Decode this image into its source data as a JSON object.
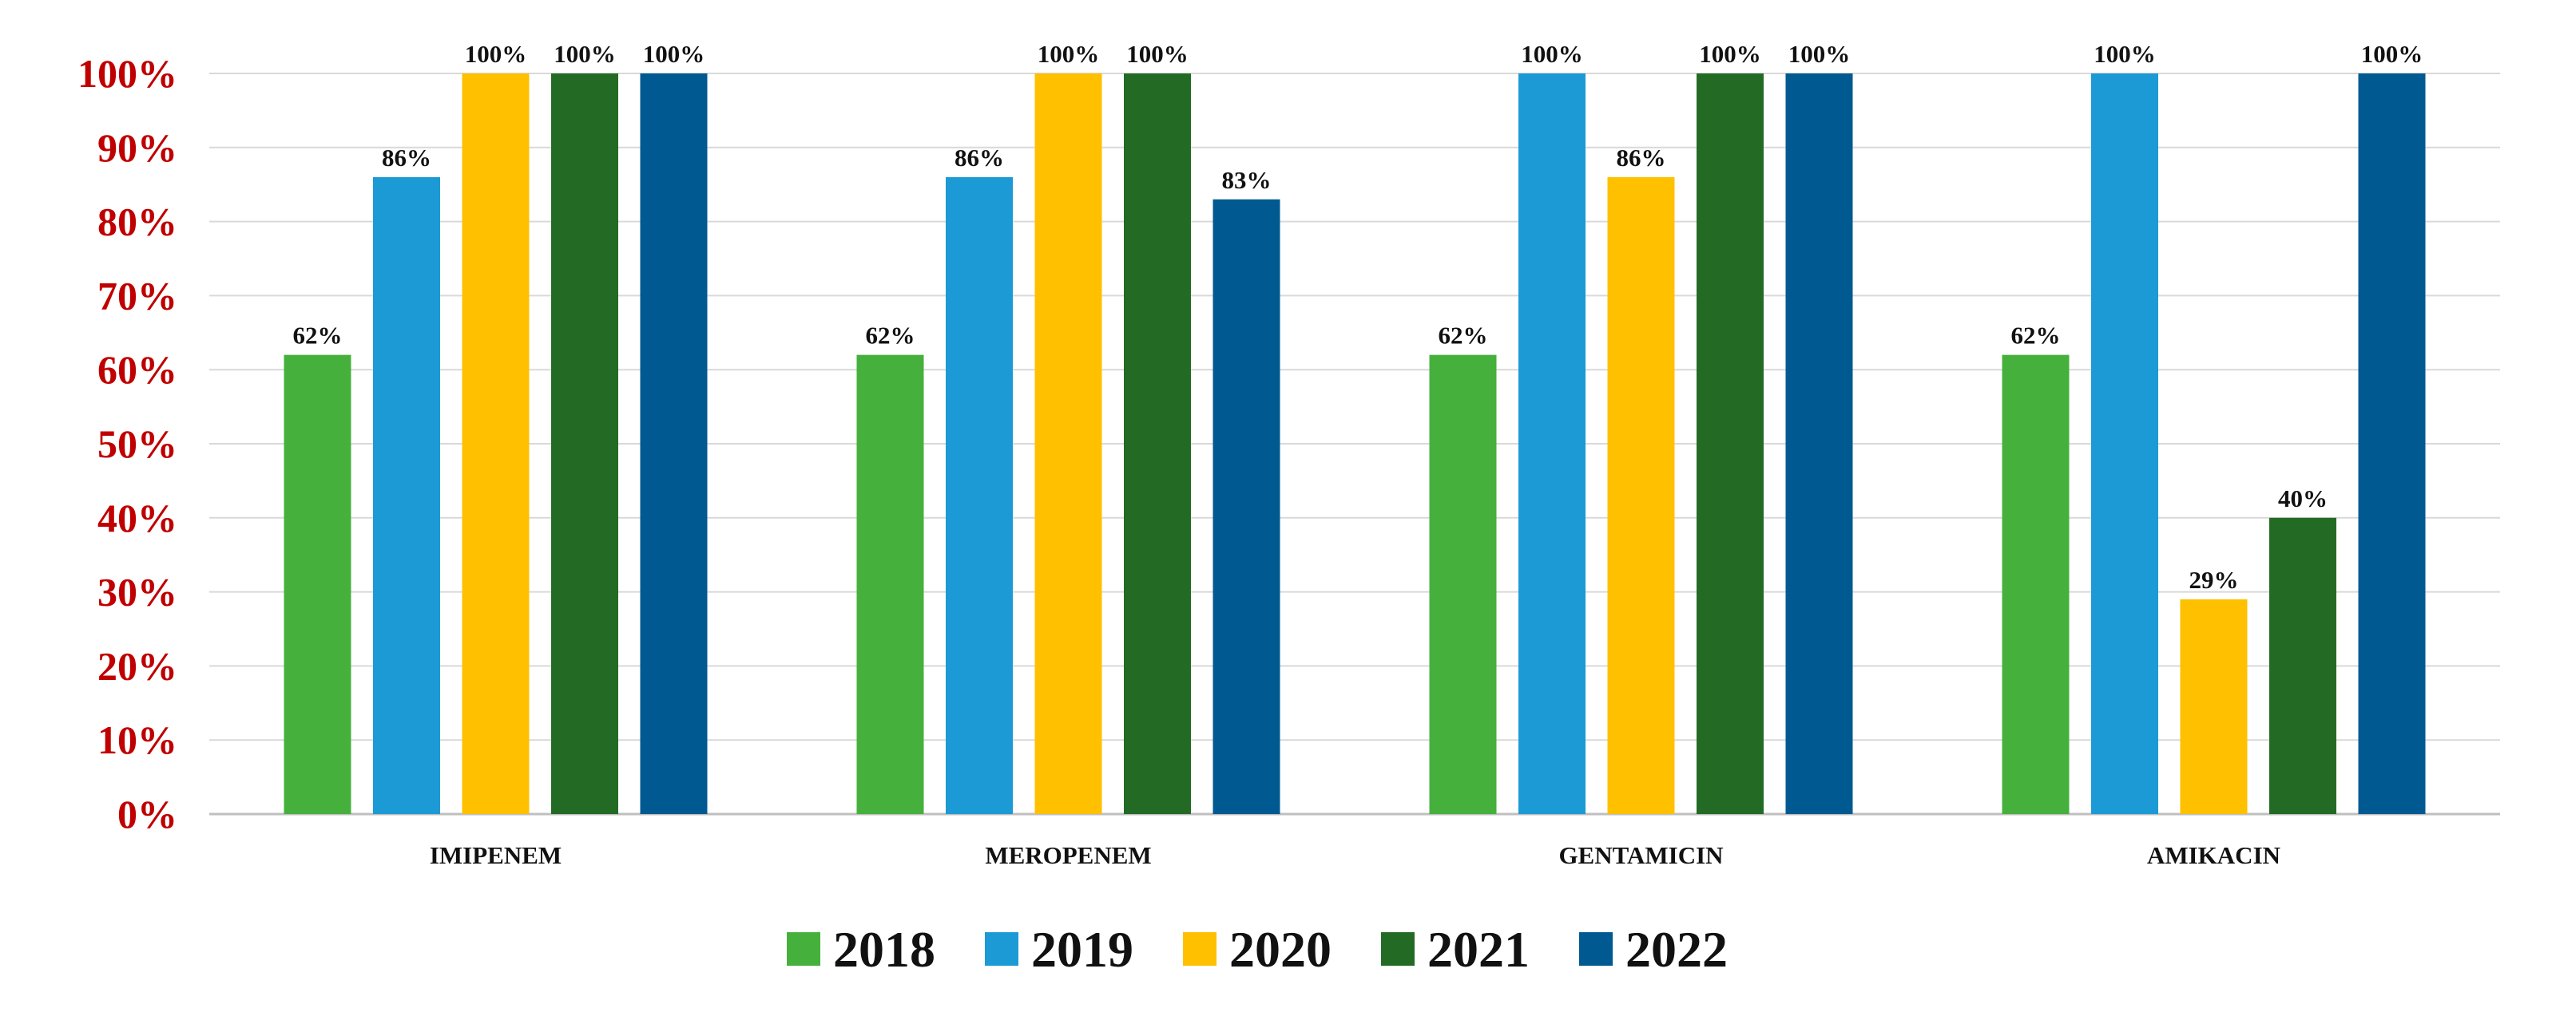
{
  "chart_data": {
    "type": "bar",
    "title": "",
    "xlabel": "",
    "ylabel": "",
    "categories": [
      "IMIPENEM",
      "MEROPENEM",
      "GENTAMICIN",
      "AMIKACIN"
    ],
    "series": [
      {
        "name": "2018",
        "color": "#46b03d",
        "values": [
          62,
          62,
          62,
          62
        ],
        "labels": [
          "62%",
          "62%",
          "62%",
          "62%"
        ]
      },
      {
        "name": "2019",
        "color": "#1b9ad6",
        "values": [
          86,
          86,
          100,
          100
        ],
        "labels": [
          "86%",
          "86%",
          "100%",
          "100%"
        ]
      },
      {
        "name": "2020",
        "color": "#ffc000",
        "values": [
          100,
          100,
          86,
          29
        ],
        "labels": [
          "100%",
          "100%",
          "86%",
          "29%"
        ]
      },
      {
        "name": "2021",
        "color": "#236b25",
        "values": [
          100,
          100,
          100,
          40
        ],
        "labels": [
          "100%",
          "100%",
          "100%",
          "40%"
        ]
      },
      {
        "name": "2022",
        "color": "#005a91",
        "values": [
          100,
          83,
          100,
          100
        ],
        "labels": [
          "100%",
          "83%",
          "100%",
          "100%"
        ]
      }
    ],
    "ylim": [
      0,
      100
    ],
    "yticks": [
      "0%",
      "10%",
      "20%",
      "30%",
      "40%",
      "50%",
      "60%",
      "70%",
      "80%",
      "90%",
      "100%"
    ],
    "ytick_color": "#c00000",
    "grid": true,
    "legend": "bottom"
  }
}
